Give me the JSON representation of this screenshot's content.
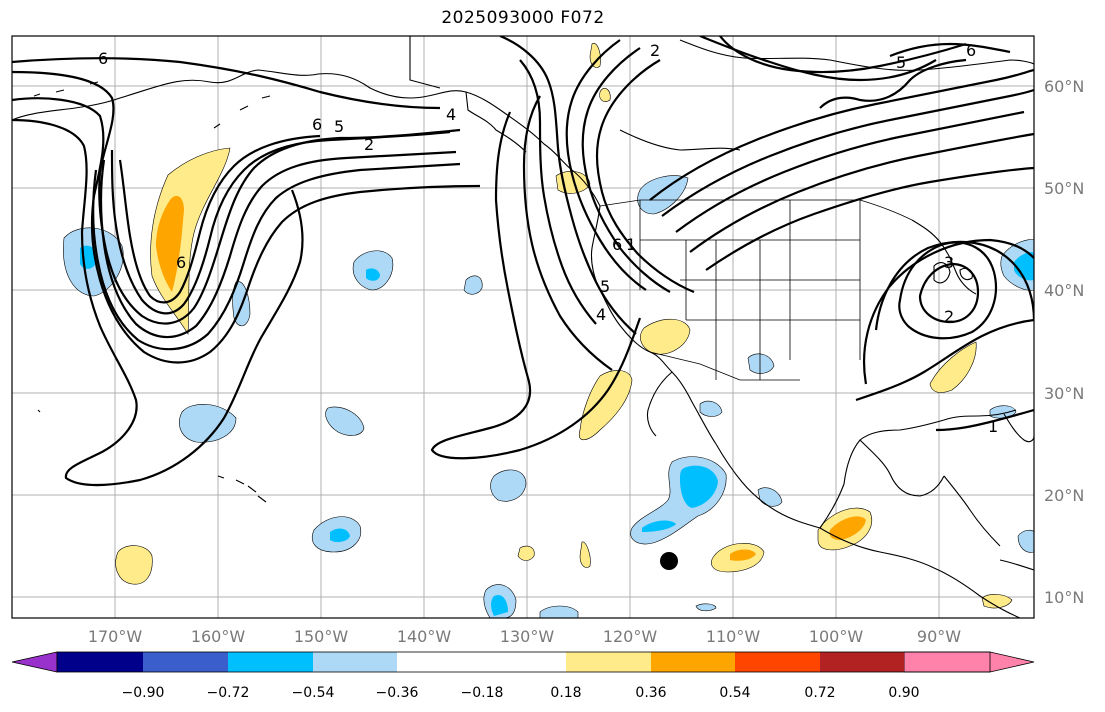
{
  "title": "2025093000 F072",
  "lat_labels": [
    "60°N",
    "50°N",
    "40°N",
    "30°N",
    "20°N",
    "10°N"
  ],
  "lon_labels": [
    "170°W",
    "160°W",
    "150°W",
    "140°W",
    "130°W",
    "120°W",
    "110°W",
    "100°W",
    "90°W"
  ],
  "colorbar": {
    "tick_labels": [
      "−0.90",
      "−0.72",
      "−0.54",
      "−0.36",
      "−0.18",
      "0.18",
      "0.36",
      "0.54",
      "0.72",
      "0.90"
    ],
    "colors": [
      "#9932cc",
      "#00008b",
      "#3a5fcd",
      "#00bfff",
      "#add8f6",
      "#ffffff",
      "#ffeb8a",
      "#ffa500",
      "#ff4500",
      "#b22222",
      "#ff82ab"
    ]
  },
  "contour_labels": [
    "6",
    "6",
    "5",
    "2",
    "2",
    "4",
    "6",
    "6",
    "1",
    "5",
    "4",
    "3",
    "2",
    "1",
    "5",
    "6"
  ],
  "fill_colors": {
    "light_blue": "#add8f6",
    "blue": "#00bfff",
    "light_yellow": "#ffeb8a",
    "orange": "#ffa500"
  }
}
